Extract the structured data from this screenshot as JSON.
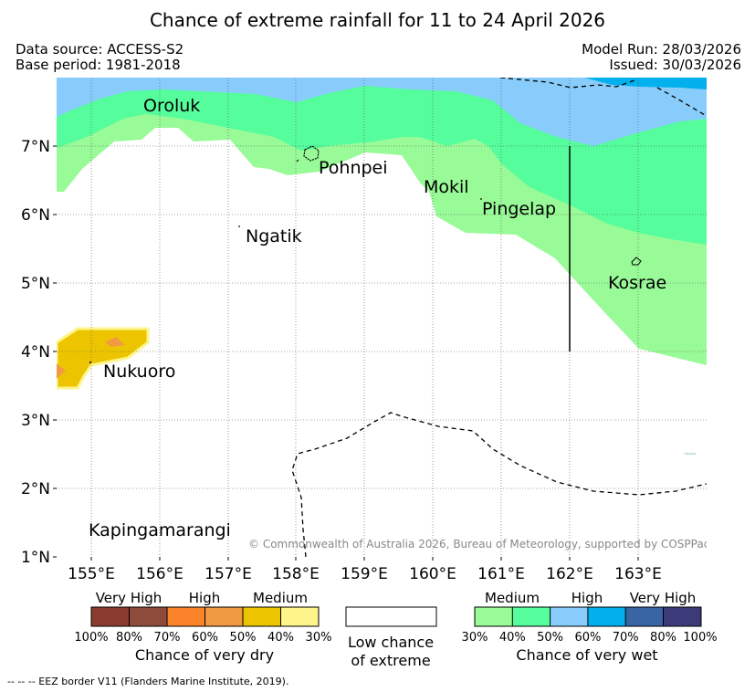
{
  "title": "Chance of extreme rainfall for 11 to 24 April 2026",
  "data_source": "Data source: ACCESS-S2",
  "base_period": "Base period: 1981-2018",
  "model_run": "Model Run: 28/03/2026",
  "issued": "Issued: 30/03/2026",
  "copyright": "© Commonwealth of Australia 2026, Bureau of Meteorology, supported by COSPPac",
  "map": {
    "lon_range": [
      154.5,
      164.0
    ],
    "lat_range": [
      1.0,
      8.0
    ],
    "x_ticks": [
      "155°E",
      "156°E",
      "157°E",
      "158°E",
      "159°E",
      "160°E",
      "161°E",
      "162°E",
      "163°E"
    ],
    "y_ticks": [
      "1°N",
      "2°N",
      "3°N",
      "4°N",
      "5°N",
      "6°N",
      "7°N"
    ],
    "places": [
      "Oroluk",
      "Pohnpei",
      "Mokil",
      "Pingelap",
      "Ngatik",
      "Kosrae",
      "Nukuoro",
      "Kapingamarangi"
    ]
  },
  "dry_legend": {
    "headers": [
      "Very High",
      "High",
      "Medium"
    ],
    "ticks": [
      "100%",
      "80%",
      "70%",
      "60%",
      "50%",
      "40%",
      "30%"
    ],
    "colors": [
      "#8b3a2e",
      "#8c4b3b",
      "#fb842a",
      "#f09a44",
      "#ecc500",
      "#fdf58a"
    ],
    "title": "Chance of very dry"
  },
  "low_legend": {
    "line1": "Low chance",
    "line2": "of extreme"
  },
  "wet_legend": {
    "headers": [
      "Medium",
      "High",
      "Very High"
    ],
    "ticks": [
      "30%",
      "40%",
      "50%",
      "60%",
      "70%",
      "80%",
      "100%"
    ],
    "colors": [
      "#99fa98",
      "#55fd9c",
      "#88ccfb",
      "#01b0ed",
      "#3965a4",
      "#3c3a78"
    ],
    "title": "Chance of very wet"
  },
  "eez_note": "--  --  -- EEZ border V11 (Flanders Marine Institute, 2019)."
}
